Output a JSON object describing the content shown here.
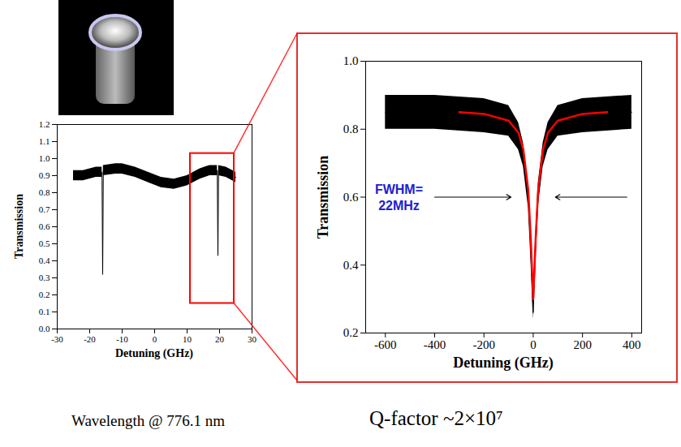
{
  "chart_data": [
    {
      "type": "line",
      "x_label": "Detuning (GHz)",
      "y_label": "Transmission",
      "xlim": [
        -30,
        30
      ],
      "xticks": [
        -30,
        -20,
        -10,
        0,
        10,
        20,
        30
      ],
      "ylim": [
        0,
        1.2
      ],
      "yticks": [
        {
          "value": 0,
          "label": "0.0"
        },
        0.1,
        0.2,
        0.3,
        0.4,
        0.5,
        0.6,
        0.7,
        0.8,
        0.9,
        {
          "value": 1,
          "label": "1.0"
        },
        1.1,
        1.2
      ],
      "grid": false,
      "series": [
        {
          "color": "#000000",
          "x": [
            -25,
            -22,
            -18,
            -16.2,
            -16,
            -15.8,
            -12,
            -10,
            -6,
            -2,
            2,
            6,
            10,
            14,
            17,
            19.3,
            19.5,
            19.7,
            22,
            25
          ],
          "values": [
            0.9,
            0.9,
            0.92,
            0.92,
            0.32,
            0.93,
            0.94,
            0.94,
            0.92,
            0.89,
            0.86,
            0.85,
            0.87,
            0.91,
            0.93,
            0.93,
            0.43,
            0.93,
            0.92,
            0.89
          ],
          "low": [
            0.87,
            0.87,
            0.89,
            0.89,
            0.32,
            0.9,
            0.91,
            0.91,
            0.89,
            0.86,
            0.83,
            0.82,
            0.84,
            0.88,
            0.9,
            0.9,
            0.43,
            0.9,
            0.89,
            0.86
          ],
          "high": [
            0.93,
            0.93,
            0.95,
            0.95,
            0.35,
            0.96,
            0.97,
            0.97,
            0.95,
            0.92,
            0.89,
            0.88,
            0.9,
            0.94,
            0.96,
            0.96,
            0.46,
            0.96,
            0.95,
            0.92
          ]
        }
      ],
      "zoom": {
        "x": [
          11,
          24.5
        ],
        "y": [
          0.15,
          1.03
        ],
        "color": "#ff0000"
      }
    },
    {
      "type": "line",
      "x_label": "Detuning (GHz)",
      "y_label": "Transmission",
      "xlim": [
        -680,
        440
      ],
      "xticks": [
        -600,
        -400,
        -200,
        0,
        200,
        400
      ],
      "ylim": [
        0.2,
        1.0
      ],
      "yticks": [
        0.2,
        0.4,
        0.6,
        0.8,
        {
          "value": 1,
          "label": "1.0"
        }
      ],
      "grid": false,
      "series": [
        {
          "color": "#000000",
          "x": [
            -600,
            -400,
            -200,
            -100,
            -60,
            -40,
            -20,
            -10,
            0,
            10,
            20,
            40,
            60,
            100,
            200,
            400
          ],
          "values": [
            0.85,
            0.85,
            0.84,
            0.82,
            0.78,
            0.72,
            0.6,
            0.45,
            0.26,
            0.45,
            0.6,
            0.72,
            0.78,
            0.82,
            0.84,
            0.85
          ],
          "low": [
            0.8,
            0.8,
            0.79,
            0.78,
            0.74,
            0.69,
            0.57,
            0.42,
            0.24,
            0.42,
            0.57,
            0.69,
            0.74,
            0.78,
            0.79,
            0.8
          ],
          "high": [
            0.9,
            0.9,
            0.89,
            0.87,
            0.82,
            0.76,
            0.64,
            0.49,
            0.3,
            0.49,
            0.64,
            0.76,
            0.82,
            0.87,
            0.89,
            0.9
          ]
        },
        {
          "color": "#ff0000",
          "x": [
            -300,
            -200,
            -100,
            -60,
            -40,
            -20,
            -10,
            0,
            10,
            20,
            40,
            60,
            100,
            200,
            300
          ],
          "values": [
            0.85,
            0.845,
            0.825,
            0.79,
            0.74,
            0.62,
            0.48,
            0.3,
            0.48,
            0.62,
            0.74,
            0.79,
            0.825,
            0.845,
            0.85
          ]
        }
      ],
      "annotation": {
        "text": "FWHM=\n22MHz",
        "x": -545,
        "y": 0.6,
        "color": "#2020d0",
        "arrows": [
          {
            "x1": -400,
            "x2": -90,
            "y": 0.6
          },
          {
            "x1": 380,
            "x2": 90,
            "y": 0.6
          }
        ]
      }
    }
  ],
  "captions": [
    "Wavelength @ 776.1 nm",
    "Q-factor ~2×10⁷"
  ]
}
